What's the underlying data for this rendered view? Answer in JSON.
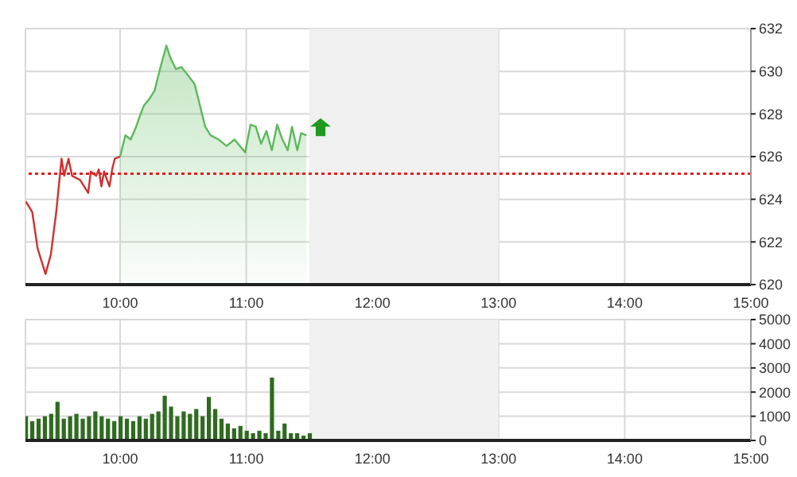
{
  "chart_data": [
    {
      "type": "line",
      "xlim": [
        9.25,
        15
      ],
      "xticks": [
        {
          "value": 10,
          "label": "10:00"
        },
        {
          "value": 11,
          "label": "11:00"
        },
        {
          "value": 12,
          "label": "12:00"
        },
        {
          "value": 13,
          "label": "13:00"
        },
        {
          "value": 14,
          "label": "14:00"
        },
        {
          "value": 15,
          "label": "15:00"
        }
      ],
      "ylim": [
        620,
        632
      ],
      "yticks": [
        620,
        622,
        624,
        626,
        628,
        630,
        632
      ],
      "grid": true,
      "ref_lines": [
        {
          "axis": "y",
          "value": 625.2,
          "color": "#e02020",
          "line_style": "dotted"
        }
      ],
      "bands": [
        {
          "axis": "x",
          "from": 11.5,
          "to": 13,
          "color": "#f0f0f0"
        }
      ],
      "series": [
        {
          "type": "line",
          "color": "#d03030",
          "x": [
            9.253,
            9.304,
            9.346,
            9.409,
            9.451,
            9.494,
            9.536,
            9.557,
            9.591,
            9.62,
            9.684,
            9.747,
            9.768,
            9.81,
            9.831,
            9.852,
            9.873,
            9.916,
            9.937,
            9.958,
            10.0
          ],
          "values": [
            623.9,
            623.4,
            621.7,
            620.5,
            621.4,
            623.4,
            625.9,
            625.1,
            625.9,
            625.1,
            624.9,
            624.3,
            625.3,
            625.1,
            625.4,
            624.6,
            625.3,
            624.6,
            625.4,
            625.9,
            626.0
          ]
        },
        {
          "type": "area",
          "color": "#5cb85c",
          "x": [
            10.0,
            10.042,
            10.084,
            10.127,
            10.169,
            10.19,
            10.232,
            10.274,
            10.316,
            10.367,
            10.401,
            10.443,
            10.485,
            10.527,
            10.591,
            10.633,
            10.675,
            10.717,
            10.781,
            10.844,
            10.907,
            10.992,
            11.034,
            11.076,
            11.118,
            11.16,
            11.203,
            11.245,
            11.287,
            11.329,
            11.363,
            11.405,
            11.435,
            11.477
          ],
          "values": [
            626.0,
            627.0,
            626.8,
            627.4,
            628.1,
            628.4,
            628.7,
            629.1,
            630.1,
            631.2,
            630.6,
            630.1,
            630.2,
            629.9,
            629.4,
            628.4,
            627.4,
            627.0,
            626.8,
            626.5,
            626.8,
            626.2,
            627.5,
            627.4,
            626.6,
            627.2,
            626.3,
            627.5,
            626.8,
            626.3,
            627.4,
            626.3,
            627.1,
            627.0
          ]
        }
      ]
    },
    {
      "type": "bar",
      "color": "#2e6b1f",
      "xlim": [
        9.25,
        15
      ],
      "xticks": [
        {
          "value": 10,
          "label": "10:00"
        },
        {
          "value": 11,
          "label": "11:00"
        },
        {
          "value": 12,
          "label": "12:00"
        },
        {
          "value": 13,
          "label": "13:00"
        },
        {
          "value": 14,
          "label": "14:00"
        },
        {
          "value": 15,
          "label": "15:00"
        }
      ],
      "ylim": [
        0,
        5000
      ],
      "yticks": [
        0,
        1000,
        2000,
        3000,
        4000,
        5000
      ],
      "grid": true,
      "bands": [
        {
          "axis": "x",
          "from": 11.5,
          "to": 13,
          "color": "#f0f0f0"
        }
      ],
      "x": [
        9.25,
        9.3,
        9.35,
        9.4,
        9.45,
        9.5,
        9.55,
        9.6,
        9.65,
        9.7,
        9.75,
        9.8,
        9.85,
        9.9,
        9.95,
        10.0,
        10.05,
        10.1,
        10.15,
        10.2,
        10.25,
        10.3,
        10.35,
        10.4,
        10.45,
        10.5,
        10.55,
        10.6,
        10.65,
        10.7,
        10.75,
        10.8,
        10.85,
        10.9,
        10.95,
        11.0,
        11.05,
        11.1,
        11.15,
        11.2,
        11.25,
        11.3,
        11.35,
        11.4,
        11.45,
        11.5
      ],
      "values": [
        1000,
        800,
        900,
        1000,
        1100,
        1600,
        900,
        1000,
        1100,
        900,
        1000,
        1200,
        1000,
        900,
        800,
        1000,
        900,
        800,
        1000,
        900,
        1100,
        1200,
        1850,
        1400,
        1000,
        1200,
        1100,
        1300,
        1000,
        1800,
        1300,
        900,
        700,
        500,
        600,
        400,
        300,
        400,
        300,
        2600,
        400,
        700,
        300,
        300,
        200,
        300
      ]
    }
  ]
}
